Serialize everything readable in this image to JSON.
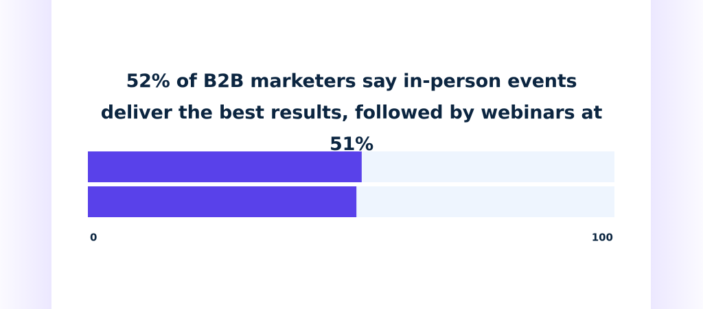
{
  "chart_data": {
    "type": "hbar",
    "title": "52% of B2B marketers say in-person events deliver the best results, followed by webinars at 51%",
    "categories": [
      null,
      null
    ],
    "values": [
      52,
      51
    ],
    "color": "#5941ea",
    "xlim": [
      0,
      100
    ],
    "xticks": [
      0,
      100
    ]
  }
}
